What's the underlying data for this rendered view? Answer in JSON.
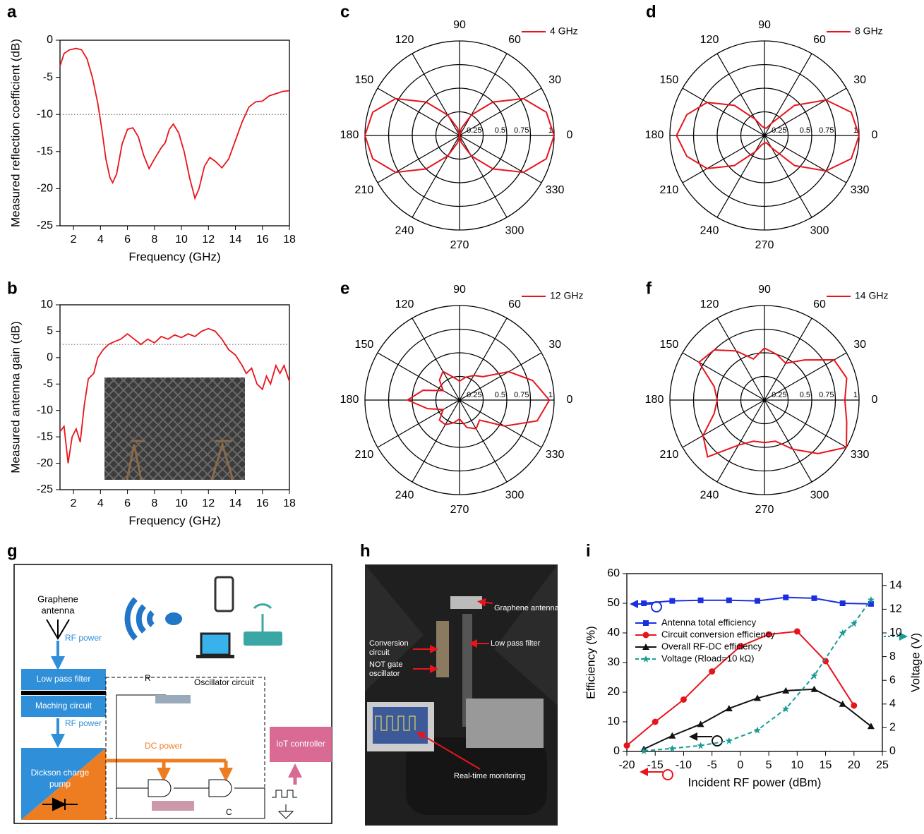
{
  "panels": [
    "a",
    "b",
    "c",
    "d",
    "e",
    "f",
    "g",
    "h",
    "i"
  ],
  "chart_data": [
    {
      "type": "line",
      "xlabel": "Frequency (GHz)",
      "ylabel": "Measured reflection coefficient (dB)",
      "x": [
        1,
        1.3,
        1.7,
        2.2,
        2.6,
        3,
        3.4,
        3.8,
        4.1,
        4.4,
        4.7,
        4.9,
        5.2,
        5.6,
        6,
        6.4,
        6.8,
        7.2,
        7.6,
        8,
        8.5,
        8.8,
        9.1,
        9.4,
        9.8,
        10.2,
        10.6,
        11,
        11.3,
        11.7,
        12.1,
        12.5,
        13,
        13.5,
        14,
        14.5,
        15,
        15.5,
        16,
        16.5,
        17,
        17.5,
        18
      ],
      "series": [
        {
          "color": "#e8141c",
          "values": [
            -3.5,
            -1.8,
            -1.3,
            -1.1,
            -1.3,
            -2.5,
            -5,
            -8.5,
            -12,
            -16,
            -18.5,
            -19.2,
            -18,
            -14,
            -12,
            -11.8,
            -13,
            -15.5,
            -17.3,
            -16,
            -14.5,
            -13.8,
            -12,
            -11.3,
            -12.5,
            -15,
            -18.5,
            -21.3,
            -20,
            -17,
            -15.8,
            -16.3,
            -17.2,
            -16,
            -13.5,
            -11,
            -9,
            -8.3,
            -8.2,
            -7.5,
            -7.2,
            -6.9,
            -6.8
          ]
        }
      ],
      "xlim": [
        1,
        18
      ],
      "xticks": [
        2,
        4,
        6,
        8,
        10,
        12,
        14,
        16,
        18
      ],
      "ylim": [
        -25,
        0
      ],
      "yticks": [
        -25,
        -20,
        -15,
        -10,
        -5,
        0
      ],
      "reference_line": -10
    },
    {
      "type": "line",
      "xlabel": "Frequency (GHz)",
      "ylabel": "Measured antenna gain (dB)",
      "x": [
        1,
        1.3,
        1.6,
        1.9,
        2.2,
        2.5,
        2.8,
        3.1,
        3.5,
        3.8,
        4.2,
        4.6,
        5,
        5.5,
        6,
        6.5,
        7,
        7.5,
        8,
        8.5,
        9,
        9.5,
        10,
        10.5,
        11,
        11.5,
        12,
        12.5,
        13,
        13.5,
        14,
        14.5,
        14.8,
        15.2,
        15.6,
        16,
        16.3,
        16.6,
        17,
        17.3,
        17.6,
        18
      ],
      "series": [
        {
          "color": "#e8141c",
          "values": [
            -14,
            -13,
            -20,
            -15,
            -13.5,
            -16,
            -9,
            -4,
            -3,
            0,
            1.5,
            2.5,
            3,
            3.5,
            4.5,
            3.5,
            2.5,
            3.5,
            2.8,
            4,
            3.5,
            4.3,
            3.8,
            4.5,
            4,
            5,
            5.5,
            5,
            3.5,
            1.5,
            0.5,
            -1.5,
            -3,
            -2,
            -5,
            -6,
            -3.5,
            -5,
            -1.5,
            -3,
            -1.5,
            -4.5
          ]
        }
      ],
      "xlim": [
        1,
        18
      ],
      "xticks": [
        2,
        4,
        6,
        8,
        10,
        12,
        14,
        16,
        18
      ],
      "ylim": [
        -25,
        10
      ],
      "yticks": [
        -25,
        -20,
        -15,
        -10,
        -5,
        0,
        5,
        10
      ],
      "reference_line": 2.5
    },
    {
      "type": "polar",
      "rlim": [
        0,
        1
      ],
      "rticks": [
        0.25,
        0.5,
        0.75,
        1
      ],
      "angle_ticks": [
        0,
        30,
        60,
        90,
        120,
        150,
        180,
        210,
        240,
        270,
        300,
        330
      ],
      "series": [
        {
          "name": "4 GHz",
          "color": "#e8141c",
          "angles": [
            0,
            15,
            30,
            45,
            60,
            75,
            90,
            105,
            120,
            135,
            150,
            165,
            180,
            195,
            210,
            225,
            240,
            255,
            270,
            285,
            300,
            315,
            330,
            345
          ],
          "values": [
            1,
            0.95,
            0.78,
            0.5,
            0.25,
            0.08,
            0,
            0.08,
            0.25,
            0.5,
            0.78,
            0.95,
            1,
            0.95,
            0.78,
            0.5,
            0.25,
            0.08,
            0,
            0.08,
            0.25,
            0.5,
            0.78,
            0.95
          ]
        }
      ]
    },
    {
      "type": "polar",
      "rlim": [
        0,
        1
      ],
      "rticks": [
        0.25,
        0.5,
        0.75,
        1
      ],
      "angle_ticks": [
        0,
        30,
        60,
        90,
        120,
        150,
        180,
        210,
        240,
        270,
        300,
        330
      ],
      "series": [
        {
          "name": "8 GHz",
          "color": "#e8141c",
          "angles": [
            0,
            15,
            30,
            45,
            60,
            75,
            90,
            105,
            120,
            135,
            150,
            165,
            180,
            195,
            210,
            225,
            240,
            255,
            270,
            285,
            300,
            315,
            330,
            345
          ],
          "values": [
            1,
            0.95,
            0.75,
            0.45,
            0.15,
            0.08,
            0.08,
            0.1,
            0.2,
            0.45,
            0.7,
            0.85,
            0.93,
            0.85,
            0.7,
            0.45,
            0.2,
            0.1,
            0.08,
            0.08,
            0.15,
            0.45,
            0.75,
            0.95
          ]
        }
      ]
    },
    {
      "type": "polar",
      "rlim": [
        0,
        1
      ],
      "rticks": [
        0.25,
        0.5,
        0.75,
        1
      ],
      "angle_ticks": [
        0,
        30,
        60,
        90,
        120,
        150,
        180,
        210,
        240,
        270,
        300,
        330
      ],
      "series": [
        {
          "name": "12 GHz",
          "color": "#e8141c",
          "angles": [
            0,
            15,
            30,
            45,
            60,
            75,
            90,
            105,
            120,
            135,
            150,
            165,
            180,
            195,
            210,
            225,
            240,
            255,
            270,
            285,
            300,
            315,
            330,
            345
          ],
          "values": [
            0.95,
            0.8,
            0.6,
            0.35,
            0.3,
            0.25,
            0.2,
            0.25,
            0.35,
            0.3,
            0.2,
            0.4,
            0.55,
            0.35,
            0.2,
            0.3,
            0.3,
            0.25,
            0.2,
            0.3,
            0.35,
            0.3,
            0.55,
            0.85
          ]
        }
      ]
    },
    {
      "type": "polar",
      "rlim": [
        0,
        1
      ],
      "rticks": [
        0.25,
        0.5,
        0.75,
        1
      ],
      "angle_ticks": [
        0,
        30,
        60,
        90,
        120,
        150,
        180,
        210,
        240,
        270,
        300,
        330
      ],
      "series": [
        {
          "name": "14 GHz",
          "color": "#e8141c",
          "angles": [
            0,
            15,
            30,
            45,
            60,
            75,
            90,
            105,
            120,
            135,
            150,
            165,
            180,
            195,
            210,
            225,
            240,
            255,
            270,
            285,
            300,
            315,
            330,
            345
          ],
          "values": [
            0.85,
            0.9,
            0.85,
            0.6,
            0.45,
            0.5,
            0.55,
            0.45,
            0.6,
            0.75,
            0.8,
            0.55,
            0.5,
            0.55,
            0.75,
            0.85,
            0.55,
            0.45,
            0.45,
            0.45,
            0.6,
            0.8,
            1,
            0.9
          ]
        }
      ]
    },
    {
      "type": "line",
      "xlabel": "Incident RF power (dBm)",
      "ylabel": "Efficiency (%)",
      "y2label": "Voltage (V)",
      "xlim": [
        -20,
        25
      ],
      "xticks": [
        -20,
        -15,
        -10,
        -5,
        0,
        5,
        10,
        15,
        20,
        25
      ],
      "ylim": [
        0,
        60
      ],
      "yticks": [
        0,
        10,
        20,
        30,
        40,
        50,
        60
      ],
      "y2lim": [
        0,
        15
      ],
      "y2ticks": [
        0,
        2,
        4,
        6,
        8,
        10,
        12,
        14
      ],
      "legend": "upper left",
      "series": [
        {
          "name": "Antenna total efficiency",
          "color": "#1a2fe0",
          "marker": "square",
          "x": [
            -17,
            -12,
            -7,
            -2,
            3,
            8,
            13,
            18,
            23
          ],
          "values": [
            50,
            50.8,
            51,
            51,
            50.8,
            52,
            51.7,
            50,
            49.8
          ]
        },
        {
          "name": "Circuit conversion efficiency",
          "color": "#e8141c",
          "marker": "circle",
          "x": [
            -20,
            -15,
            -10,
            -5,
            0,
            5,
            10,
            15,
            20
          ],
          "values": [
            2,
            10,
            17.5,
            27,
            35.5,
            39.5,
            40.5,
            30.5,
            15.5
          ]
        },
        {
          "name": "Overall RF-DC efficiency",
          "color": "#111111",
          "marker": "triangle",
          "x": [
            -17,
            -12,
            -7,
            -2,
            3,
            8,
            13,
            18,
            23
          ],
          "values": [
            0.8,
            5.3,
            9.2,
            14.5,
            18,
            20.5,
            21,
            16,
            8.5
          ]
        },
        {
          "name": "Voltage (Rload=10 kΩ)",
          "color": "#1a9a96",
          "marker": "star",
          "line_style": "dashed",
          "axis": "y2",
          "x": [
            -17,
            -12,
            -7,
            -2,
            3,
            8,
            13,
            18,
            20,
            23
          ],
          "values": [
            0.05,
            0.25,
            0.5,
            0.9,
            1.8,
            3.6,
            6.4,
            10,
            10.8,
            12.8
          ]
        }
      ]
    }
  ],
  "diagram": {
    "antenna": [
      "Graphene",
      "antenna"
    ],
    "rf_power_1": "RF power",
    "filter": "Low pass filter",
    "matching": "Maching circuit",
    "rf_power_2": "RF power",
    "pump": [
      "Dickson charge",
      "pump"
    ],
    "dc_power": "DC power",
    "oscillator": "Oscillator circuit",
    "resistor": "R",
    "capacitor": "C",
    "iot": "IoT controller"
  },
  "photo": {
    "antenna": "Graphene antenna",
    "conversion": [
      "Conversion",
      "circuit"
    ],
    "filter": "Low pass filter",
    "oscillator": [
      "NOT gate",
      "oscillator"
    ],
    "monitoring": "Real-time monitoring"
  }
}
